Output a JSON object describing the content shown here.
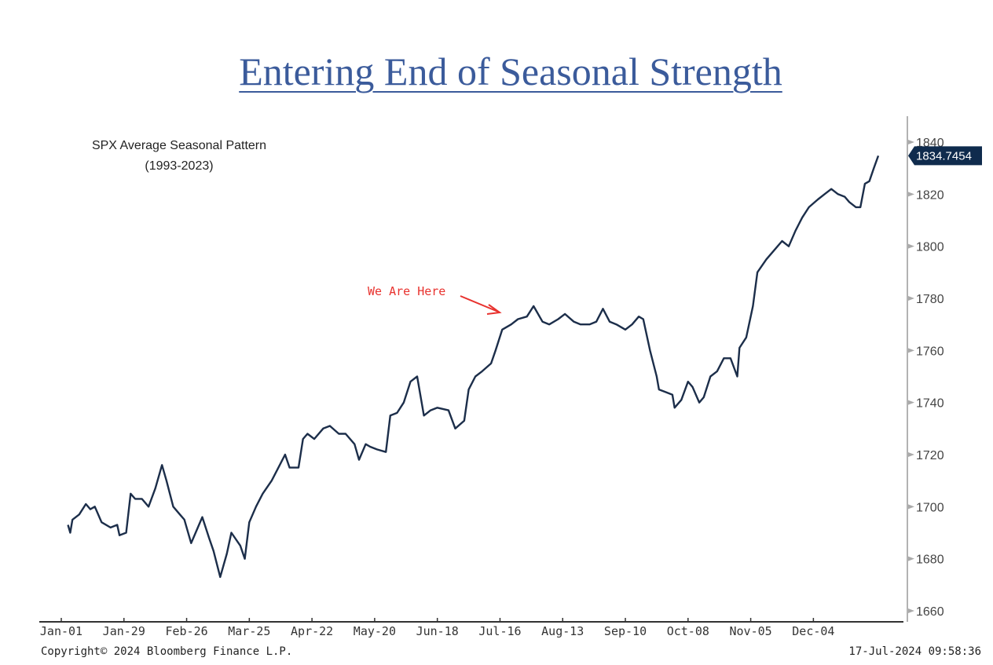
{
  "title": "Entering End of Seasonal Strength",
  "chart_data": {
    "type": "line",
    "title": "SPX Average Seasonal Pattern",
    "subtitle": "(1993-2023)",
    "xlabel": "",
    "ylabel": "",
    "x_unit": "day of year",
    "xlim": [
      0,
      365
    ],
    "ylim": [
      1655,
      1850
    ],
    "y_ticks": [
      1660,
      1680,
      1700,
      1720,
      1740,
      1760,
      1780,
      1800,
      1820,
      1840
    ],
    "x_ticks": [
      {
        "day": 0,
        "label": "Jan-01"
      },
      {
        "day": 28,
        "label": "Jan-29"
      },
      {
        "day": 56,
        "label": "Feb-26"
      },
      {
        "day": 84,
        "label": "Mar-25"
      },
      {
        "day": 112,
        "label": "Apr-22"
      },
      {
        "day": 140,
        "label": "May-20"
      },
      {
        "day": 168,
        "label": "Jun-18"
      },
      {
        "day": 196,
        "label": "Jul-16"
      },
      {
        "day": 224,
        "label": "Aug-13"
      },
      {
        "day": 252,
        "label": "Sep-10"
      },
      {
        "day": 280,
        "label": "Oct-08"
      },
      {
        "day": 308,
        "label": "Nov-05"
      },
      {
        "day": 336,
        "label": "Dec-04"
      }
    ],
    "last_value_label": "1834.7454",
    "annotation": {
      "text": "We Are Here",
      "day": 197,
      "value": 1774
    },
    "series": [
      {
        "name": "SPX Average Seasonal Pattern",
        "color": "#1c2e4a",
        "points": [
          [
            3,
            1693
          ],
          [
            4,
            1690
          ],
          [
            5,
            1695
          ],
          [
            8,
            1697
          ],
          [
            11,
            1701
          ],
          [
            13,
            1699
          ],
          [
            15,
            1700
          ],
          [
            18,
            1694
          ],
          [
            22,
            1692
          ],
          [
            25,
            1693
          ],
          [
            26,
            1689
          ],
          [
            29,
            1690
          ],
          [
            31,
            1705
          ],
          [
            33,
            1703
          ],
          [
            36,
            1703
          ],
          [
            39,
            1700
          ],
          [
            42,
            1707
          ],
          [
            45,
            1716
          ],
          [
            47,
            1710
          ],
          [
            50,
            1700
          ],
          [
            53,
            1697
          ],
          [
            55,
            1695
          ],
          [
            58,
            1686
          ],
          [
            60,
            1690
          ],
          [
            63,
            1696
          ],
          [
            66,
            1688
          ],
          [
            68,
            1683
          ],
          [
            71,
            1673
          ],
          [
            74,
            1682
          ],
          [
            76,
            1690
          ],
          [
            80,
            1685
          ],
          [
            82,
            1680
          ],
          [
            84,
            1694
          ],
          [
            87,
            1700
          ],
          [
            90,
            1705
          ],
          [
            94,
            1710
          ],
          [
            97,
            1715
          ],
          [
            100,
            1720
          ],
          [
            102,
            1715
          ],
          [
            106,
            1715
          ],
          [
            108,
            1726
          ],
          [
            110,
            1728
          ],
          [
            113,
            1726
          ],
          [
            117,
            1730
          ],
          [
            120,
            1731
          ],
          [
            124,
            1728
          ],
          [
            127,
            1728
          ],
          [
            131,
            1724
          ],
          [
            133,
            1718
          ],
          [
            136,
            1724
          ],
          [
            138,
            1723
          ],
          [
            141,
            1722
          ],
          [
            145,
            1721
          ],
          [
            147,
            1735
          ],
          [
            150,
            1736
          ],
          [
            153,
            1740
          ],
          [
            156,
            1748
          ],
          [
            159,
            1750
          ],
          [
            162,
            1735
          ],
          [
            165,
            1737
          ],
          [
            168,
            1738
          ],
          [
            173,
            1737
          ],
          [
            176,
            1730
          ],
          [
            180,
            1733
          ],
          [
            182,
            1745
          ],
          [
            185,
            1750
          ],
          [
            188,
            1752
          ],
          [
            192,
            1755
          ],
          [
            194,
            1760
          ],
          [
            197,
            1768
          ],
          [
            201,
            1770
          ],
          [
            204,
            1772
          ],
          [
            208,
            1773
          ],
          [
            211,
            1777
          ],
          [
            215,
            1771
          ],
          [
            218,
            1770
          ],
          [
            222,
            1772
          ],
          [
            225,
            1774
          ],
          [
            229,
            1771
          ],
          [
            232,
            1770
          ],
          [
            236,
            1770
          ],
          [
            239,
            1771
          ],
          [
            242,
            1776
          ],
          [
            245,
            1771
          ],
          [
            248,
            1770
          ],
          [
            252,
            1768
          ],
          [
            255,
            1770
          ],
          [
            258,
            1773
          ],
          [
            260,
            1772
          ],
          [
            263,
            1760
          ],
          [
            266,
            1750
          ],
          [
            267,
            1745
          ],
          [
            270,
            1744
          ],
          [
            273,
            1743
          ],
          [
            274,
            1738
          ],
          [
            277,
            1741
          ],
          [
            280,
            1748
          ],
          [
            282,
            1746
          ],
          [
            285,
            1740
          ],
          [
            287,
            1742
          ],
          [
            290,
            1750
          ],
          [
            293,
            1752
          ],
          [
            296,
            1757
          ],
          [
            299,
            1757
          ],
          [
            302,
            1750
          ],
          [
            303,
            1761
          ],
          [
            306,
            1765
          ],
          [
            309,
            1777
          ],
          [
            311,
            1790
          ],
          [
            315,
            1795
          ],
          [
            318,
            1798
          ],
          [
            322,
            1802
          ],
          [
            325,
            1800
          ],
          [
            328,
            1806
          ],
          [
            331,
            1811
          ],
          [
            334,
            1815
          ],
          [
            338,
            1818
          ],
          [
            341,
            1820
          ],
          [
            344,
            1822
          ],
          [
            347,
            1820
          ],
          [
            350,
            1819
          ],
          [
            352,
            1817
          ],
          [
            355,
            1815
          ],
          [
            357,
            1815
          ],
          [
            359,
            1824
          ],
          [
            361,
            1825
          ],
          [
            363,
            1830
          ],
          [
            365,
            1834.7454
          ]
        ]
      }
    ]
  },
  "footer": {
    "copyright": "Copyright© 2024 Bloomberg Finance L.P.",
    "timestamp": "17-Jul-2024 09:58:36"
  }
}
